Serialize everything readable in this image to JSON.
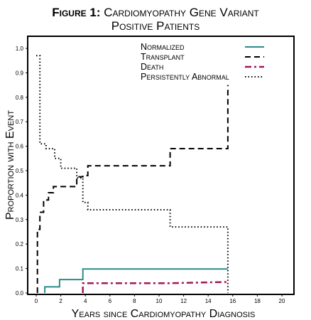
{
  "chart_data": {
    "type": "line",
    "title_prefix": "Figure 1:",
    "title_rest": "Cardiomyopathy Gene Variant",
    "title_line2": "Positive Patients",
    "xlabel": "Years since Cardiomyopathy Diagnosis",
    "ylabel": "Proportion with Event",
    "xlim": [
      -1,
      21
    ],
    "ylim": [
      0,
      1.05
    ],
    "x_ticks": [
      0,
      2,
      4,
      6,
      8,
      10,
      12,
      14,
      16,
      18,
      20
    ],
    "y_ticks": [
      0.0,
      0.1,
      0.2,
      0.3,
      0.4,
      0.5,
      0.6,
      0.7,
      0.8,
      0.9,
      1.0
    ],
    "y_tick_labels": [
      "0.0",
      "0.1",
      "0.2",
      "0.3",
      "0.4",
      "0.5",
      "0.6",
      "0.7",
      "0.8",
      "0.9",
      "1.0"
    ],
    "legend_position": "top-right",
    "series": [
      {
        "name": "Normalized",
        "color": "#2e8b8b",
        "style": "solid",
        "x": [
          0.7,
          0.7,
          1.9,
          1.9,
          3.8,
          3.8,
          15.6
        ],
        "y": [
          0.0,
          0.025,
          0.025,
          0.055,
          0.055,
          0.098,
          0.098
        ]
      },
      {
        "name": "Transplant",
        "color": "#000000",
        "style": "dashed",
        "x": [
          0.1,
          0.1,
          0.3,
          0.3,
          0.6,
          0.6,
          1.0,
          1.0,
          1.4,
          1.4,
          3.3,
          3.3,
          3.8,
          3.8,
          4.2,
          4.2,
          10.9,
          10.9,
          15.6,
          15.6
        ],
        "y": [
          0.0,
          0.26,
          0.26,
          0.33,
          0.33,
          0.38,
          0.38,
          0.41,
          0.41,
          0.435,
          0.435,
          0.475,
          0.475,
          0.48,
          0.48,
          0.52,
          0.52,
          0.59,
          0.59,
          0.85
        ]
      },
      {
        "name": "Death",
        "color": "#a3165a",
        "style": "dashdot",
        "x": [
          3.8,
          3.8,
          10.9,
          15.6
        ],
        "y": [
          0.0,
          0.04,
          0.04,
          0.045
        ]
      },
      {
        "name": "Persistently Abnormal",
        "color": "#000000",
        "style": "dotted",
        "x": [
          0.0,
          0.0,
          0.3,
          0.3,
          0.8,
          0.8,
          1.5,
          1.5,
          2.0,
          2.0,
          3.3,
          3.3,
          3.8,
          3.8,
          4.2,
          4.2,
          10.9,
          10.9,
          15.6,
          15.6
        ],
        "y": [
          0.97,
          0.97,
          0.97,
          0.61,
          0.61,
          0.59,
          0.59,
          0.55,
          0.55,
          0.51,
          0.51,
          0.47,
          0.47,
          0.37,
          0.37,
          0.34,
          0.34,
          0.27,
          0.27,
          0.0
        ]
      }
    ]
  }
}
